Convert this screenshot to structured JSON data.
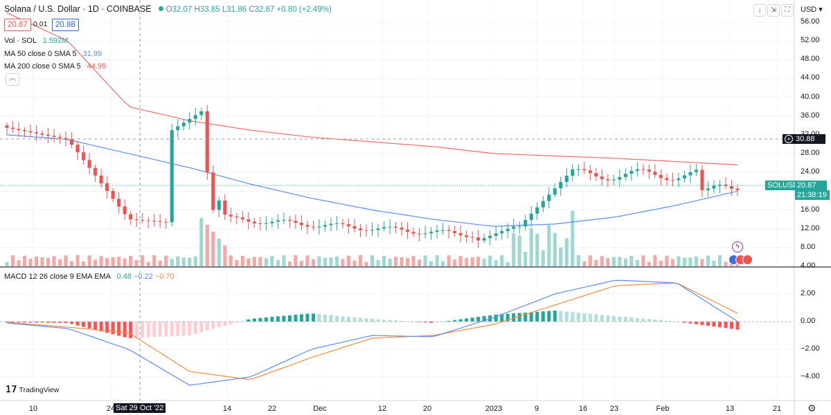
{
  "header": {
    "symbol_title": "Solana / U.S. Dollar · 1D · COINBASE",
    "ohlc": {
      "o_label": "O",
      "o": "32.07",
      "h_label": "H",
      "h": "33.85",
      "l_label": "L",
      "l": "31.86",
      "c_label": "C",
      "c": "32.87",
      "change": "+0.80 (+2.49%)"
    },
    "sell_price": "20.87",
    "spread": "0.01",
    "buy_price": "20.88"
  },
  "indicators": {
    "volume": {
      "name": "Vol · SOL",
      "value": "1.592M"
    },
    "ma50": {
      "name": "MA 50 close 0 SMA 5",
      "value": "31.99"
    },
    "ma200": {
      "name": "MA 200 close 0 SMA 5",
      "value": "44.99"
    },
    "macd": {
      "name": "MACD 12 26 close 9 EMA EMA",
      "v1": "0.48",
      "v2": "−0.22",
      "v3": "−0.70"
    }
  },
  "toolbar": {
    "currency": "USD",
    "down_icon": "↓",
    "expand_icon": "⇲",
    "fullscreen_icon": "⛶",
    "collapse_icon": "︿"
  },
  "price_axis": [
    "56.00",
    "52.00",
    "48.00",
    "44.00",
    "40.00",
    "36.00",
    "32.00",
    "28.00",
    "24.00",
    "20.00",
    "16.00",
    "12.00",
    "8.00",
    "4.00"
  ],
  "macd_axis": [
    "2.00",
    "0.00",
    "−2.00",
    "−4.00"
  ],
  "time_axis": [
    "10",
    "24",
    "14",
    "22",
    "Dec",
    "12",
    "20",
    "2023",
    "9",
    "16",
    "23",
    "Feb",
    "13",
    "21"
  ],
  "crosshair": {
    "date": "Sat 29 Oct '22",
    "price": "30.88"
  },
  "last_price": {
    "symbol": "SOLUSD",
    "price": "20.87",
    "countdown": "21:38:19"
  },
  "branding": "TradingView",
  "colors": {
    "up": "#26a69a",
    "down": "#ef5350",
    "ma50": "#5b8def",
    "ma200": "#f06a6a",
    "macd": "#5b8def",
    "signal": "#f68a3c"
  },
  "chart_data": {
    "type": "line",
    "price_series": {
      "time_labels": [
        "Oct 10",
        "Oct 24",
        "Nov 14",
        "Nov 22",
        "Dec",
        "Dec 12",
        "Dec 20",
        "Jan 2023",
        "Jan 9",
        "Jan 16",
        "Jan 23",
        "Feb",
        "Feb 13"
      ],
      "close": [
        33.5,
        31.0,
        14.0,
        13.0,
        14.0,
        13.8,
        12.0,
        10.0,
        17.5,
        24.0,
        24.5,
        24.0,
        20.87
      ]
    },
    "ma50": [
      32.0,
      31.0,
      28.0,
      25.0,
      21.5,
      18.5,
      16.0,
      14.0,
      12.5,
      13.0,
      14.5,
      17.0,
      20.0
    ],
    "ma200": [
      58.0,
      52.0,
      38.0,
      35.0,
      33.0,
      31.5,
      30.5,
      29.5,
      28.0,
      27.5,
      27.0,
      26.3,
      25.6
    ],
    "macd": [
      -0.1,
      -0.5,
      -2.0,
      -4.6,
      -4.0,
      -2.0,
      -1.0,
      -1.1,
      0.3,
      2.0,
      3.0,
      2.8,
      0.02
    ],
    "signal": [
      -0.05,
      -0.4,
      -0.8,
      -3.6,
      -4.2,
      -2.6,
      -1.2,
      -1.0,
      -0.2,
      1.2,
      2.6,
      2.8,
      0.6
    ],
    "ylim_price": [
      4,
      56
    ],
    "ylim_macd": [
      -4.8,
      3.0
    ]
  }
}
